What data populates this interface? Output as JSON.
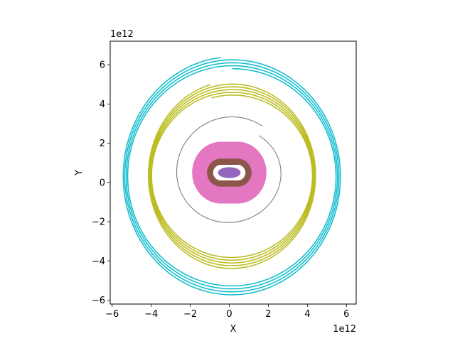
{
  "chart_data": {
    "type": "line",
    "title": "",
    "xlabel": "X",
    "ylabel": "Y",
    "x_offset_text": "1e12",
    "y_offset_text": "1e12",
    "xlim": [
      -6.1,
      6.5
    ],
    "ylim": [
      -6.2,
      7.2
    ],
    "x_ticks": [
      -6,
      -4,
      -2,
      0,
      2,
      4,
      6
    ],
    "y_ticks": [
      -6,
      -4,
      -2,
      0,
      2,
      4,
      6
    ],
    "x_tick_labels": [
      "−6",
      "−4",
      "−2",
      "0",
      "2",
      "4",
      "6"
    ],
    "y_tick_labels": [
      "−6",
      "−4",
      "−2",
      "0",
      "2",
      "4",
      "6"
    ],
    "grid": false,
    "aspect": "equal",
    "series": [
      {
        "color": "#9467bd",
        "center": [
          0.0,
          0.5
        ],
        "rx": [
          0.55,
          0.55
        ],
        "ry": [
          0.25,
          0.25
        ],
        "dx": 0.0,
        "turns": 1,
        "start_deg": 90,
        "end_deg": 450,
        "filled": true,
        "units": "1e12"
      },
      {
        "color": "#8c564b",
        "center": [
          0.0,
          0.5
        ],
        "rx": [
          0.78,
          0.82
        ],
        "ry": [
          0.78,
          0.9
        ],
        "dx": 0.85,
        "turns": 40,
        "start_deg": 90,
        "end_deg": 450,
        "filled": true,
        "units": "1e12"
      },
      {
        "color": "#e377c2",
        "center": [
          0.0,
          0.5
        ],
        "rx": [
          1.35,
          1.45
        ],
        "ry": [
          1.35,
          1.55
        ],
        "dx": 0.85,
        "turns": 40,
        "start_deg": 90,
        "end_deg": 450,
        "filled": true,
        "units": "1e12"
      },
      {
        "color": "#7f7f7f",
        "center": [
          0.05,
          0.5
        ],
        "rx": [
          2.55,
          2.85
        ],
        "ry": [
          2.3,
          2.9
        ],
        "dx": 0.15,
        "turns": 18,
        "start_deg": 55,
        "end_deg": 415,
        "filled": false,
        "units": "1e12"
      },
      {
        "color": "#bcbd22",
        "center": [
          0.15,
          0.35
        ],
        "rx": [
          4.1,
          4.3
        ],
        "ry": [
          4.1,
          4.8
        ],
        "dx": 0.1,
        "turns": 5,
        "start_deg": 105,
        "end_deg": 1905,
        "filled": false,
        "units": "1e12"
      },
      {
        "color": "#17becf",
        "center": [
          0.15,
          0.3
        ],
        "rx": [
          5.3,
          5.6
        ],
        "ry": [
          5.5,
          6.1
        ],
        "dx": 0.1,
        "turns": 4,
        "start_deg": 96,
        "end_deg": 1530,
        "filled": false,
        "units": "1e12"
      }
    ]
  }
}
